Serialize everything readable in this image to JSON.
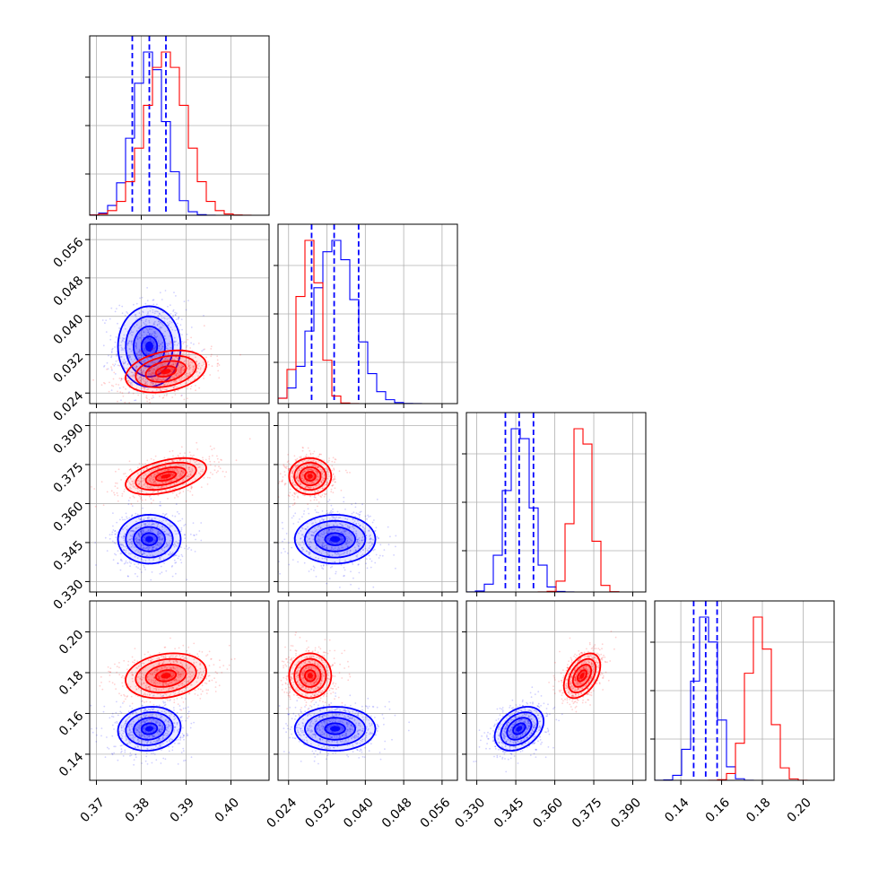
{
  "chart_data": {
    "type": "corner",
    "grid": true,
    "series": [
      {
        "name": "",
        "color": "#0000ff",
        "mean": [
          0.3818,
          0.0337,
          0.3463,
          0.1525
        ],
        "sd": [
          0.0035,
          0.0042,
          0.0047,
          0.0054
        ],
        "corr": [
          [
            1,
            0,
            0,
            0.1
          ],
          [
            0,
            1,
            0,
            0
          ],
          [
            0,
            0,
            1,
            0.35
          ],
          [
            0.1,
            0,
            0.35,
            1
          ]
        ],
        "quantiles": [
          [
            0.378,
            0.3818,
            0.3855
          ],
          [
            0.0288,
            0.0335,
            0.0386
          ],
          [
            0.341,
            0.3463,
            0.3518
          ],
          [
            0.1463,
            0.1522,
            0.1578
          ]
        ]
      },
      {
        "name": "",
        "color": "#ff0000",
        "mean": [
          0.3855,
          0.0285,
          0.3705,
          0.1785
        ],
        "sd": [
          0.0045,
          0.0022,
          0.0035,
          0.0055
        ],
        "corr": [
          [
            1,
            0.3,
            0.45,
            0.2
          ],
          [
            0.3,
            1,
            0,
            0
          ],
          [
            0.45,
            0,
            1,
            0.45
          ],
          [
            0.2,
            0,
            0.45,
            1
          ]
        ]
      }
    ],
    "axes": [
      {
        "range": [
          0.3685,
          0.4085
        ],
        "ticks": [
          0.37,
          0.38,
          0.39,
          0.4
        ],
        "tick_labels": [
          "0.37",
          "0.38",
          "0.39",
          "0.40"
        ]
      },
      {
        "range": [
          0.0218,
          0.0592
        ],
        "ticks": [
          0.024,
          0.032,
          0.04,
          0.048,
          0.056
        ],
        "tick_labels": [
          "0.024",
          "0.032",
          "0.040",
          "0.048",
          "0.056"
        ]
      },
      {
        "range": [
          0.326,
          0.395
        ],
        "ticks": [
          0.33,
          0.345,
          0.36,
          0.375,
          0.39
        ],
        "tick_labels": [
          "0.330",
          "0.345",
          "0.360",
          "0.375",
          "0.390"
        ]
      },
      {
        "range": [
          0.1272,
          0.2152
        ],
        "ticks": [
          0.14,
          0.16,
          0.18,
          0.2
        ],
        "tick_labels": [
          "0.14",
          "0.16",
          "0.18",
          "0.20"
        ]
      }
    ],
    "contour_levels_sigma": [
      0.5,
      1.0,
      1.5,
      2.0
    ]
  }
}
